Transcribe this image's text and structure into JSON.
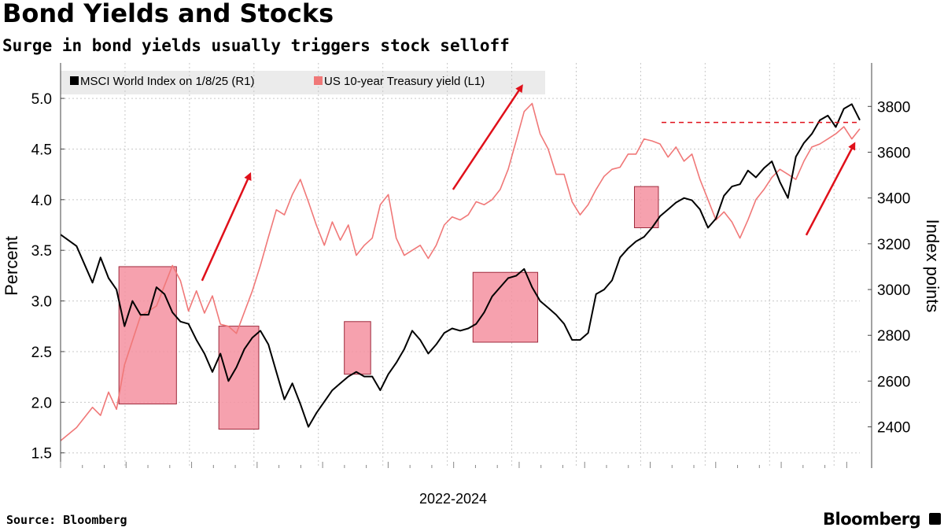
{
  "title": "Bond Yields and Stocks",
  "subtitle": "Surge in bond yields usually triggers stock selloff",
  "source": "Source: Bloomberg",
  "brand": "Bloomberg",
  "colors": {
    "stock": "#000000",
    "yield": "#f07878",
    "highlight_fill": "#f590a0",
    "highlight_stroke": "#9e2a3c",
    "arrow": "#e0101a",
    "grid": "#c8c8c8"
  },
  "chart_data": {
    "type": "line",
    "title": "Bond Yields and Stocks",
    "subtitle": "Surge in bond yields usually triggers stock selloff",
    "xlabel": "2022-2024",
    "ylabel_left": "Percent",
    "ylabel_right": "Index points",
    "ylim_left": [
      1.35,
      5.35
    ],
    "ylim_right": [
      2220,
      3990
    ],
    "yticks_left": [
      "1.5",
      "2.0",
      "2.5",
      "3.0",
      "3.5",
      "4.0",
      "4.5",
      "5.0"
    ],
    "yticks_right": [
      "2400",
      "2600",
      "2800",
      "3000",
      "3200",
      "3400",
      "3600",
      "3800"
    ],
    "x_range": [
      0,
      100
    ],
    "grid": true,
    "legend_position": "top-left",
    "series": [
      {
        "name": "MSCI World Index on 1/8/25 (R1)",
        "axis": "right",
        "color": "#000000",
        "points": [
          [
            0,
            3240
          ],
          [
            2,
            3190
          ],
          [
            4,
            3030
          ],
          [
            5,
            3140
          ],
          [
            6,
            3050
          ],
          [
            7,
            3000
          ],
          [
            8,
            2840
          ],
          [
            9,
            2950
          ],
          [
            10,
            2890
          ],
          [
            11,
            2890
          ],
          [
            12,
            3010
          ],
          [
            13,
            2980
          ],
          [
            14,
            2900
          ],
          [
            15,
            2860
          ],
          [
            16,
            2850
          ],
          [
            17,
            2780
          ],
          [
            18,
            2720
          ],
          [
            19,
            2640
          ],
          [
            20,
            2720
          ],
          [
            21,
            2600
          ],
          [
            22,
            2660
          ],
          [
            23,
            2740
          ],
          [
            24,
            2790
          ],
          [
            25,
            2820
          ],
          [
            26,
            2760
          ],
          [
            27,
            2640
          ],
          [
            28,
            2520
          ],
          [
            29,
            2590
          ],
          [
            30,
            2500
          ],
          [
            31,
            2400
          ],
          [
            32,
            2460
          ],
          [
            33,
            2510
          ],
          [
            34,
            2560
          ],
          [
            35,
            2590
          ],
          [
            36,
            2620
          ],
          [
            37,
            2640
          ],
          [
            38,
            2620
          ],
          [
            39,
            2620
          ],
          [
            40,
            2560
          ],
          [
            41,
            2630
          ],
          [
            42,
            2680
          ],
          [
            43,
            2740
          ],
          [
            44,
            2820
          ],
          [
            45,
            2780
          ],
          [
            46,
            2720
          ],
          [
            47,
            2760
          ],
          [
            48,
            2810
          ],
          [
            49,
            2830
          ],
          [
            50,
            2820
          ],
          [
            51,
            2830
          ],
          [
            52,
            2850
          ],
          [
            53,
            2900
          ],
          [
            54,
            2970
          ],
          [
            55,
            3010
          ],
          [
            56,
            3050
          ],
          [
            57,
            3060
          ],
          [
            58,
            3090
          ],
          [
            59,
            3010
          ],
          [
            60,
            2950
          ],
          [
            61,
            2920
          ],
          [
            62,
            2890
          ],
          [
            63,
            2850
          ],
          [
            64,
            2780
          ],
          [
            65,
            2780
          ],
          [
            66,
            2810
          ],
          [
            67,
            2980
          ],
          [
            68,
            3000
          ],
          [
            69,
            3040
          ],
          [
            70,
            3140
          ],
          [
            71,
            3180
          ],
          [
            72,
            3210
          ],
          [
            73,
            3230
          ],
          [
            74,
            3270
          ],
          [
            75,
            3320
          ],
          [
            76,
            3350
          ],
          [
            77,
            3380
          ],
          [
            78,
            3400
          ],
          [
            79,
            3390
          ],
          [
            80,
            3350
          ],
          [
            81,
            3270
          ],
          [
            82,
            3310
          ],
          [
            83,
            3410
          ],
          [
            84,
            3450
          ],
          [
            85,
            3460
          ],
          [
            86,
            3520
          ],
          [
            87,
            3490
          ],
          [
            88,
            3530
          ],
          [
            89,
            3560
          ],
          [
            90,
            3470
          ],
          [
            91,
            3400
          ],
          [
            92,
            3580
          ],
          [
            93,
            3640
          ],
          [
            94,
            3680
          ],
          [
            95,
            3740
          ],
          [
            96,
            3760
          ],
          [
            97,
            3710
          ],
          [
            98,
            3790
          ],
          [
            99,
            3810
          ],
          [
            100,
            3740
          ]
        ]
      },
      {
        "name": "US 10-year Treasury yield (L1)",
        "axis": "left",
        "color": "#f07878",
        "points": [
          [
            0,
            1.62
          ],
          [
            2,
            1.75
          ],
          [
            4,
            1.95
          ],
          [
            5,
            1.87
          ],
          [
            6,
            2.1
          ],
          [
            7,
            1.93
          ],
          [
            8,
            2.37
          ],
          [
            10,
            2.85
          ],
          [
            12,
            2.95
          ],
          [
            14,
            3.35
          ],
          [
            15,
            3.2
          ],
          [
            16,
            2.9
          ],
          [
            17,
            3.1
          ],
          [
            18,
            2.88
          ],
          [
            19,
            3.05
          ],
          [
            20,
            2.77
          ],
          [
            21,
            2.75
          ],
          [
            22,
            2.68
          ],
          [
            24,
            3.1
          ],
          [
            25,
            3.35
          ],
          [
            26,
            3.63
          ],
          [
            27,
            3.9
          ],
          [
            28,
            3.85
          ],
          [
            29,
            4.05
          ],
          [
            30,
            4.2
          ],
          [
            31,
            3.98
          ],
          [
            32,
            3.75
          ],
          [
            33,
            3.55
          ],
          [
            34,
            3.78
          ],
          [
            35,
            3.6
          ],
          [
            36,
            3.75
          ],
          [
            37,
            3.45
          ],
          [
            38,
            3.55
          ],
          [
            39,
            3.62
          ],
          [
            40,
            3.95
          ],
          [
            41,
            4.05
          ],
          [
            42,
            3.62
          ],
          [
            43,
            3.45
          ],
          [
            44,
            3.5
          ],
          [
            45,
            3.55
          ],
          [
            46,
            3.42
          ],
          [
            47,
            3.55
          ],
          [
            48,
            3.75
          ],
          [
            49,
            3.83
          ],
          [
            50,
            3.8
          ],
          [
            51,
            3.85
          ],
          [
            52,
            3.98
          ],
          [
            53,
            3.95
          ],
          [
            54,
            4.0
          ],
          [
            55,
            4.1
          ],
          [
            56,
            4.3
          ],
          [
            57,
            4.58
          ],
          [
            58,
            4.87
          ],
          [
            59,
            4.95
          ],
          [
            60,
            4.65
          ],
          [
            61,
            4.5
          ],
          [
            62,
            4.25
          ],
          [
            63,
            4.25
          ],
          [
            64,
            3.98
          ],
          [
            65,
            3.85
          ],
          [
            66,
            3.95
          ],
          [
            67,
            4.1
          ],
          [
            68,
            4.23
          ],
          [
            69,
            4.3
          ],
          [
            70,
            4.32
          ],
          [
            71,
            4.45
          ],
          [
            72,
            4.45
          ],
          [
            73,
            4.6
          ],
          [
            74,
            4.58
          ],
          [
            75,
            4.55
          ],
          [
            76,
            4.42
          ],
          [
            77,
            4.52
          ],
          [
            78,
            4.38
          ],
          [
            79,
            4.45
          ],
          [
            80,
            4.2
          ],
          [
            81,
            4.0
          ],
          [
            82,
            3.8
          ],
          [
            83,
            3.88
          ],
          [
            84,
            3.78
          ],
          [
            85,
            3.62
          ],
          [
            86,
            3.8
          ],
          [
            87,
            4.0
          ],
          [
            88,
            4.1
          ],
          [
            89,
            4.22
          ],
          [
            90,
            4.3
          ],
          [
            91,
            4.25
          ],
          [
            92,
            4.2
          ],
          [
            93,
            4.38
          ],
          [
            94,
            4.52
          ],
          [
            95,
            4.55
          ],
          [
            96,
            4.6
          ],
          [
            97,
            4.65
          ],
          [
            98,
            4.72
          ],
          [
            99,
            4.6
          ],
          [
            100,
            4.7
          ]
        ]
      }
    ],
    "annotations": {
      "highlight_boxes": [
        {
          "x0": 7.3,
          "x1": 14.5,
          "y0": 2500,
          "y1": 3100
        },
        {
          "x0": 19.8,
          "x1": 24.8,
          "y0": 2390,
          "y1": 2840
        },
        {
          "x0": 35.5,
          "x1": 38.8,
          "y0": 2630,
          "y1": 2860
        },
        {
          "x0": 51.6,
          "x1": 59.7,
          "y0": 2770,
          "y1": 3075
        },
        {
          "x0": 71.8,
          "x1": 74.8,
          "y0": 3270,
          "y1": 3450
        }
      ],
      "arrows": [
        {
          "from": [
            17.7,
            3.2
          ],
          "to": [
            23.7,
            4.25
          ]
        },
        {
          "from": [
            49.1,
            4.1
          ],
          "to": [
            57.7,
            5.12
          ]
        },
        {
          "from": [
            93.3,
            3.65
          ],
          "to": [
            99.3,
            4.55
          ]
        }
      ],
      "dashed_line": {
        "x0": 75.2,
        "x1": 100,
        "y": 3730
      }
    }
  }
}
